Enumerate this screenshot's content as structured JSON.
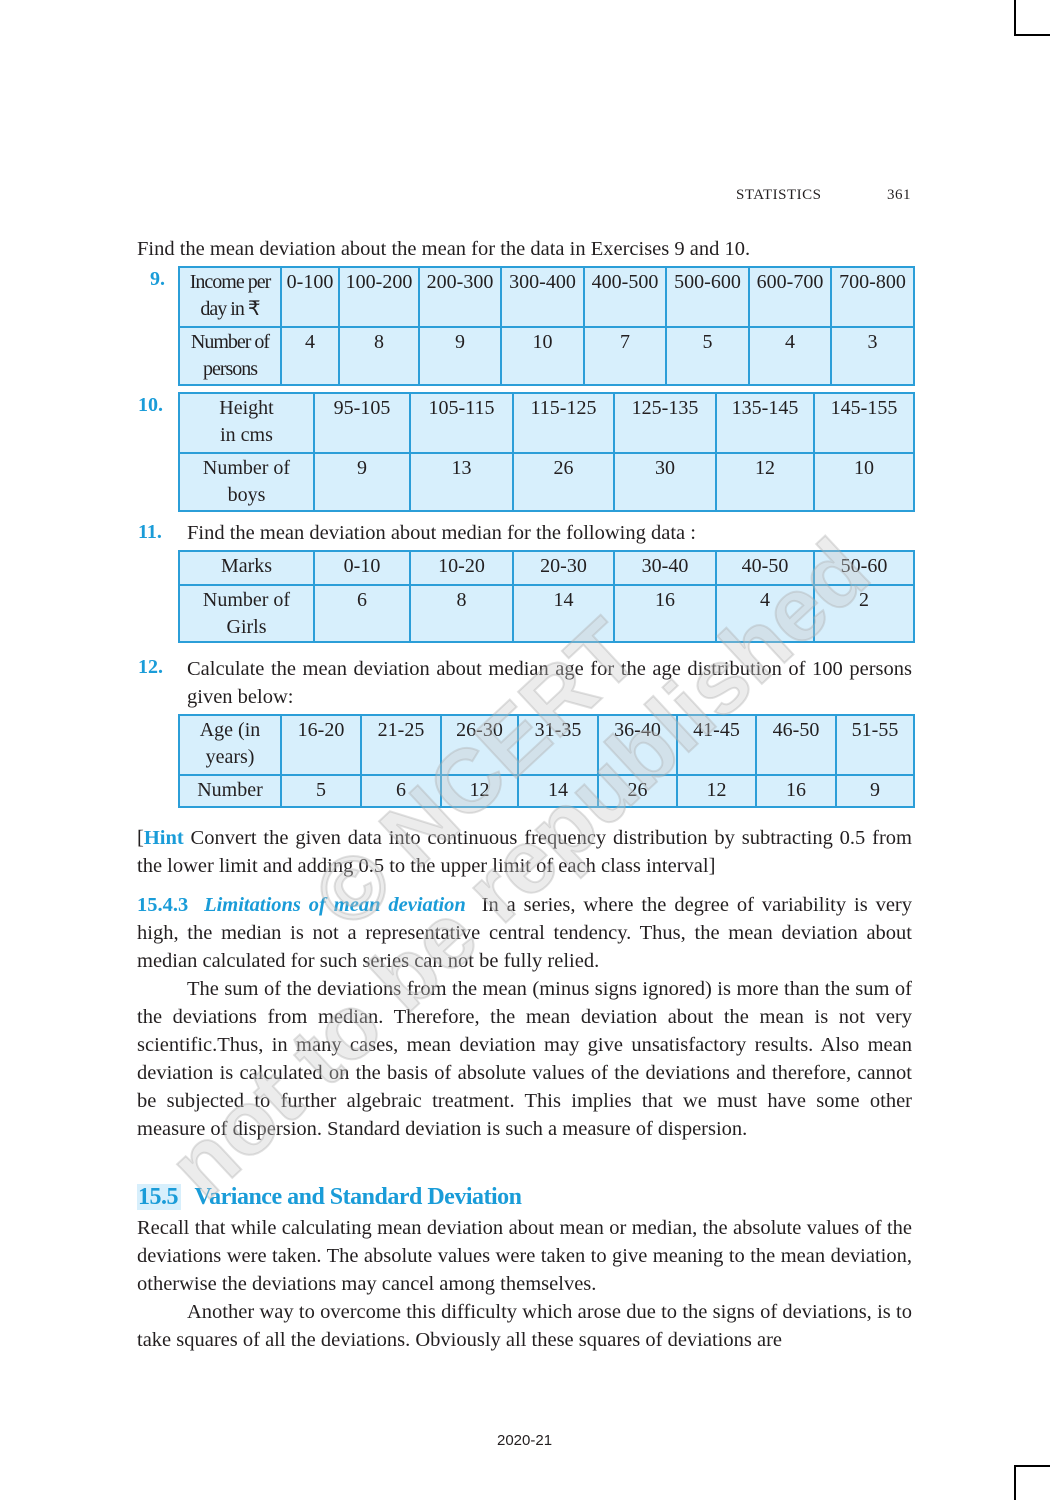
{
  "header": {
    "running_title": "STATISTICS",
    "page_number": "361"
  },
  "intro": "Find the mean deviation about the mean for the data in Exercises 9 and 10.",
  "exercises": {
    "ex9": {
      "number": "9.",
      "rows": [
        [
          "Income per day in ₹",
          "0-100",
          "100-200",
          "200-300",
          "300-400",
          "400-500",
          "500-600",
          "600-700",
          "700-800"
        ],
        [
          "Number of persons",
          "4",
          "8",
          "9",
          "10",
          "7",
          "5",
          "4",
          "3"
        ]
      ]
    },
    "ex10": {
      "number": "10.",
      "rows": [
        [
          "Height in cms",
          "95-105",
          "105-115",
          "115-125",
          "125-135",
          "135-145",
          "145-155"
        ],
        [
          "Number of boys",
          "9",
          "13",
          "26",
          "30",
          "12",
          "10"
        ]
      ]
    },
    "ex11": {
      "number": "11.",
      "question": "Find the mean deviation about median for the following data :",
      "rows": [
        [
          "Marks",
          "0-10",
          "10-20",
          "20-30",
          "30-40",
          "40-50",
          "50-60"
        ],
        [
          "Number of Girls",
          "6",
          "8",
          "14",
          "16",
          "4",
          "2"
        ]
      ]
    },
    "ex12": {
      "number": "12.",
      "question": "Calculate the mean deviation about median age for the age distribution of 100 persons given below:",
      "rows": [
        [
          "Age (in years)",
          "16-20",
          "21-25",
          "26-30",
          "31-35",
          "36-40",
          "41-45",
          "46-50",
          "51-55"
        ],
        [
          "Number",
          "5",
          "6",
          "12",
          "14",
          "26",
          "12",
          "16",
          "9"
        ]
      ]
    }
  },
  "hint": {
    "open": "[",
    "label": "Hint",
    "text": " Convert the given data into continuous frequency distribution by subtracting 0.5 from the lower limit and adding 0.5 to the upper limit of each class interval]"
  },
  "section_1543": {
    "number": "15.4.3",
    "title": "Limitations of mean deviation",
    "p1": "In a series, where the degree of variability is very high, the median is not a representative central tendency. Thus, the mean deviation about median calculated for such series can not be fully relied.",
    "p2": "The sum of the deviations from the mean (minus signs ignored) is more than the sum of the deviations from median. Therefore, the mean deviation about the mean is not very scientific.Thus, in many cases, mean deviation may give unsatisfactory results. Also mean deviation is calculated on the basis of absolute values of the deviations and therefore, cannot be subjected to further algebraic treatment. This implies that we must have some other measure of dispersion. Standard deviation is such a measure of dispersion."
  },
  "section_155": {
    "number": "15.5",
    "title": "Variance and Standard Deviation",
    "p1": "Recall that while calculating mean deviation about mean or median, the absolute values of the deviations were taken. The absolute values were taken to give meaning to the mean deviation, otherwise the deviations may cancel among themselves.",
    "p2": "Another way to overcome this difficulty which arose due to the signs of deviations, is to take squares of all the deviations. Obviously all these squares of deviations are"
  },
  "watermark": {
    "line1": "© NCERT",
    "line2": "not to be republished"
  },
  "footer": "2020-21",
  "colors": {
    "accent": "#1a9cd8",
    "table_fill": "#d7effc",
    "table_border": "#2b9ed8"
  }
}
